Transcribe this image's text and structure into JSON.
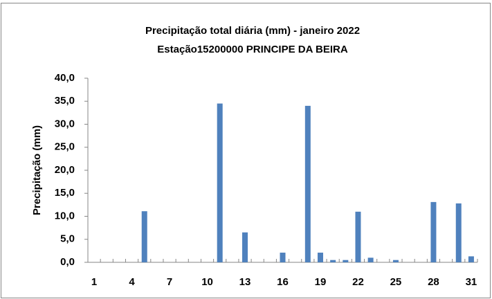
{
  "chart_data": {
    "type": "bar",
    "title": "Precipitação total diária (mm) - janeiro 2022",
    "subtitle": "Estação15200000 PRINCIPE DA BEIRA",
    "y_label": "Precipitação (mm)",
    "categories": [
      "1",
      null,
      null,
      "4",
      null,
      null,
      "7",
      null,
      null,
      "10",
      null,
      null,
      "13",
      null,
      null,
      "16",
      null,
      null,
      "19",
      null,
      null,
      "22",
      null,
      null,
      "25",
      null,
      null,
      "28",
      null,
      null,
      "31"
    ],
    "values": [
      0,
      0,
      0,
      0,
      11.1,
      0,
      0,
      0,
      0,
      0,
      34.5,
      0,
      6.5,
      0,
      0,
      2.1,
      0,
      34.0,
      2.1,
      0.5,
      0.5,
      11.0,
      1.0,
      0,
      0.5,
      0,
      0,
      13.1,
      0,
      12.8,
      1.3
    ],
    "color": "#4f81bd",
    "ylim": [
      0,
      40
    ],
    "yticks": [
      {
        "value": 0,
        "label": "0,0"
      },
      {
        "value": 5,
        "label": "5,0"
      },
      {
        "value": 10,
        "label": "10,0"
      },
      {
        "value": 15,
        "label": "15,0"
      },
      {
        "value": 20,
        "label": "20,0"
      },
      {
        "value": 25,
        "label": "25,0"
      },
      {
        "value": 30,
        "label": "30,0"
      },
      {
        "value": 35,
        "label": "35,0"
      },
      {
        "value": 40,
        "label": "40,0"
      }
    ],
    "grid": false
  }
}
